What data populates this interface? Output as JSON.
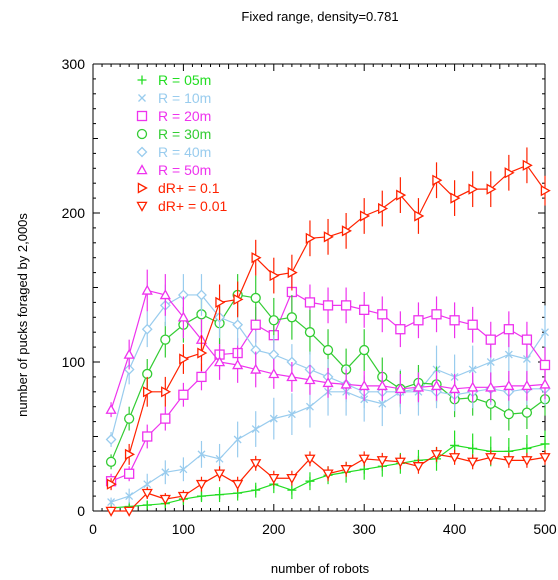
{
  "chart_data": {
    "type": "line",
    "title": "Fixed range, density=0.781",
    "xlabel": "number of robots",
    "ylabel": "number of pucks foraged by 2,000s",
    "xlim": [
      0,
      500
    ],
    "ylim": [
      0,
      300
    ],
    "xticks": [
      0,
      100,
      200,
      300,
      400,
      500
    ],
    "yticks": [
      0,
      100,
      200,
      300
    ],
    "grid": false,
    "legend_position": "top-left",
    "x": [
      20,
      40,
      60,
      80,
      100,
      120,
      140,
      160,
      180,
      200,
      220,
      240,
      260,
      280,
      300,
      320,
      340,
      360,
      380,
      400,
      420,
      440,
      460,
      480,
      500
    ],
    "series": [
      {
        "name": "R = 05m",
        "color": "#22dd22",
        "marker": "plus",
        "values": [
          2,
          3,
          4,
          5,
          8,
          10,
          11,
          12,
          14,
          18,
          14,
          20,
          24,
          26,
          28,
          30,
          32,
          34,
          35,
          44,
          42,
          40,
          40,
          42,
          45
        ],
        "errors": [
          2,
          3,
          3,
          3,
          4,
          4,
          5,
          5,
          5,
          6,
          6,
          6,
          6,
          7,
          7,
          7,
          7,
          7,
          8,
          10,
          10,
          10,
          9,
          9,
          9
        ]
      },
      {
        "name": "R = 10m",
        "color": "#99ccee",
        "marker": "x",
        "values": [
          6,
          10,
          18,
          26,
          28,
          38,
          35,
          48,
          55,
          62,
          65,
          70,
          80,
          80,
          75,
          72,
          80,
          80,
          95,
          90,
          95,
          100,
          105,
          102,
          120
        ],
        "errors": [
          3,
          5,
          7,
          8,
          8,
          9,
          10,
          12,
          12,
          14,
          14,
          14,
          16,
          16,
          15,
          15,
          15,
          16,
          16,
          15,
          16,
          16,
          17,
          17,
          18
        ]
      },
      {
        "name": "R = 20m",
        "color": "#ee33ee",
        "marker": "square",
        "values": [
          20,
          25,
          50,
          62,
          78,
          90,
          105,
          106,
          125,
          118,
          147,
          140,
          138,
          138,
          135,
          132,
          122,
          128,
          132,
          128,
          125,
          115,
          122,
          115,
          98
        ],
        "errors": [
          5,
          5,
          8,
          8,
          8,
          9,
          10,
          10,
          12,
          12,
          13,
          12,
          12,
          12,
          12,
          12,
          12,
          12,
          12,
          12,
          12,
          12,
          12,
          12,
          12
        ]
      },
      {
        "name": "R = 30m",
        "color": "#33cc33",
        "marker": "circle",
        "values": [
          33,
          62,
          92,
          115,
          125,
          132,
          126,
          145,
          143,
          128,
          130,
          120,
          108,
          95,
          108,
          90,
          82,
          86,
          85,
          75,
          76,
          72,
          65,
          66,
          75
        ],
        "errors": [
          5,
          8,
          10,
          12,
          12,
          12,
          14,
          14,
          15,
          15,
          15,
          15,
          14,
          14,
          14,
          13,
          12,
          12,
          12,
          12,
          12,
          11,
          11,
          11,
          11
        ]
      },
      {
        "name": "R = 40m",
        "color": "#99ccee",
        "marker": "diamond",
        "values": [
          48,
          95,
          122,
          138,
          145,
          145,
          130,
          125,
          108,
          105,
          100,
          95,
          90,
          85,
          80,
          80,
          80,
          82,
          80,
          78,
          80,
          82,
          80,
          82,
          82
        ],
        "errors": [
          5,
          10,
          12,
          14,
          14,
          14,
          14,
          14,
          13,
          13,
          12,
          12,
          12,
          12,
          11,
          11,
          11,
          11,
          11,
          11,
          11,
          11,
          11,
          11,
          11
        ]
      },
      {
        "name": "R = 50m",
        "color": "#ee33ee",
        "marker": "triangle-up",
        "values": [
          68,
          105,
          148,
          145,
          130,
          115,
          100,
          98,
          95,
          92,
          90,
          88,
          86,
          85,
          84,
          84,
          82,
          83,
          84,
          82,
          83,
          83,
          84,
          84,
          85
        ],
        "errors": [
          5,
          10,
          14,
          14,
          14,
          14,
          12,
          12,
          12,
          10,
          10,
          10,
          10,
          10,
          10,
          10,
          10,
          10,
          10,
          10,
          10,
          10,
          10,
          10,
          10
        ]
      },
      {
        "name": "dR+ = 0.1",
        "color": "#ff2200",
        "marker": "triangle-right",
        "values": [
          18,
          38,
          80,
          80,
          102,
          106,
          140,
          142,
          170,
          158,
          160,
          183,
          184,
          188,
          198,
          203,
          212,
          198,
          222,
          210,
          216,
          216,
          227,
          232,
          215
        ],
        "errors": [
          4,
          7,
          10,
          10,
          10,
          12,
          12,
          12,
          12,
          12,
          12,
          12,
          12,
          12,
          12,
          12,
          12,
          12,
          12,
          12,
          12,
          12,
          12,
          12,
          10
        ]
      },
      {
        "name": "dR+ = 0.01",
        "color": "#ff2200",
        "marker": "triangle-down",
        "values": [
          0,
          0,
          12,
          8,
          10,
          18,
          25,
          18,
          32,
          22,
          22,
          35,
          25,
          28,
          35,
          34,
          33,
          30,
          38,
          36,
          33,
          36,
          34,
          34,
          36
        ],
        "errors": [
          2,
          2,
          4,
          4,
          4,
          5,
          5,
          5,
          5,
          5,
          5,
          5,
          5,
          5,
          5,
          5,
          5,
          5,
          5,
          5,
          5,
          5,
          5,
          5,
          5
        ]
      }
    ]
  }
}
